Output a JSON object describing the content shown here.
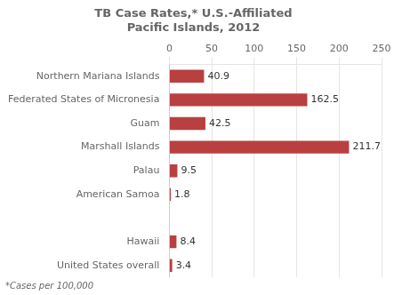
{
  "chart_data": {
    "type": "bar",
    "orientation": "horizontal",
    "title": [
      "TB Case Rates,* U.S.-Affiliated",
      "Pacific Islands, 2012"
    ],
    "annotations": [
      "*Cases per 100,000"
    ],
    "categories": [
      "United States overall",
      "Hawaii",
      null,
      "American Samoa",
      "Palau",
      "Marshall Islands",
      "Guam",
      "Federated States of Micronesia",
      "Northern Mariana Islands"
    ],
    "values": [
      3.4,
      8.4,
      null,
      1.8,
      9.5,
      211.7,
      42.5,
      162.5,
      40.9
    ],
    "color": "#b94040",
    "xlim": [
      0,
      250
    ],
    "xticks": [
      0,
      50,
      100,
      150,
      200,
      250
    ],
    "grid": true,
    "data_labels": true
  }
}
